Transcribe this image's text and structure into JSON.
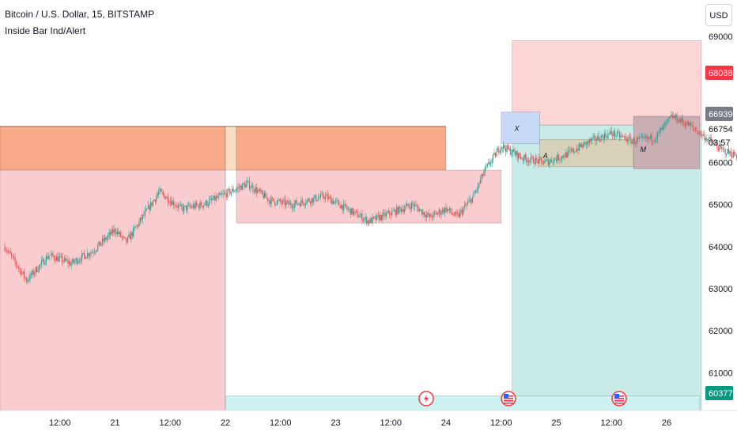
{
  "header": {
    "symbol_line": "Bitcoin / U.S. Dollar, 15, BITSTAMP",
    "indicator": "Inside Bar Ind/Alert",
    "currency": "USD"
  },
  "price_badges": {
    "target": "68088",
    "last": "66939",
    "current": "66754",
    "countdown": "03:57",
    "lower": "60377"
  },
  "pattern_labels": [
    "X",
    "A",
    "M"
  ],
  "colors": {
    "up": "#26a69a",
    "down": "#ef5350",
    "badge_red": "#f23645",
    "badge_gray": "#787b86",
    "badge_green": "#089981"
  },
  "chart_data": {
    "type": "candlestick",
    "title": "Bitcoin / U.S. Dollar, 15, BITSTAMP",
    "ylim": [
      60000,
      69500
    ],
    "yticks": [
      61000,
      62000,
      63000,
      64000,
      65000,
      66000,
      69000
    ],
    "xticks": [
      "12:00",
      "21",
      "12:00",
      "22",
      "12:00",
      "23",
      "12:00",
      "24",
      "12:00",
      "25",
      "12:00",
      "26"
    ],
    "price_path": [
      [
        0.0,
        64000
      ],
      [
        0.2,
        63200
      ],
      [
        0.4,
        63800
      ],
      [
        0.6,
        63600
      ],
      [
        0.8,
        63900
      ],
      [
        1.0,
        64400
      ],
      [
        1.1,
        64100
      ],
      [
        1.4,
        65300
      ],
      [
        1.6,
        64900
      ],
      [
        1.8,
        65000
      ],
      [
        2.2,
        65500
      ],
      [
        2.4,
        65100
      ],
      [
        2.6,
        65000
      ],
      [
        2.9,
        65200
      ],
      [
        3.1,
        64900
      ],
      [
        3.3,
        64600
      ],
      [
        3.5,
        64800
      ],
      [
        3.7,
        65000
      ],
      [
        3.85,
        64700
      ],
      [
        4.0,
        64900
      ],
      [
        4.1,
        64700
      ],
      [
        4.25,
        65200
      ],
      [
        4.35,
        65800
      ],
      [
        4.5,
        66400
      ],
      [
        4.7,
        66100
      ],
      [
        4.9,
        66000
      ],
      [
        5.1,
        66200
      ],
      [
        5.3,
        66500
      ],
      [
        5.5,
        66700
      ],
      [
        5.7,
        66500
      ],
      [
        5.9,
        66600
      ],
      [
        6.05,
        67100
      ],
      [
        6.2,
        66900
      ],
      [
        6.35,
        66600
      ],
      [
        6.5,
        66300
      ],
      [
        6.6,
        66200
      ],
      [
        6.75,
        66000
      ],
      [
        6.9,
        66100
      ],
      [
        7.1,
        66000
      ],
      [
        7.25,
        66300
      ],
      [
        7.35,
        67000
      ],
      [
        7.45,
        66900
      ],
      [
        7.55,
        66650
      ],
      [
        7.65,
        66750
      ],
      [
        7.75,
        66800
      ]
    ],
    "zones": [
      {
        "x0": -0.4,
        "x1": 2.0,
        "y0": 66860,
        "y1": 65820,
        "fill": "#f7a988"
      },
      {
        "x0": -0.4,
        "x1": 2.0,
        "y0": 65820,
        "y1": 60000,
        "fill": "#f9cdd0"
      },
      {
        "x0": 2.0,
        "x1": 2.1,
        "y0": 66860,
        "y1": 65820,
        "fill": "#fcdcc0"
      },
      {
        "x0": 2.1,
        "x1": 4.0,
        "y0": 66860,
        "y1": 65820,
        "fill": "#f7a988"
      },
      {
        "x0": 2.1,
        "x1": 4.5,
        "y0": 65820,
        "y1": 64560,
        "fill": "#f9cdd0"
      },
      {
        "x0": 4.6,
        "x1": 6.4,
        "y0": 68900,
        "y1": 66890,
        "fill": "#fcd5d5"
      },
      {
        "x0": 4.6,
        "x1": 6.4,
        "y0": 66890,
        "y1": 60000,
        "fill": "#c8ebe7"
      },
      {
        "x0": 2.0,
        "x1": 6.3,
        "y0": 60450,
        "y1": 60000,
        "fill": "#cdf1f0"
      },
      {
        "x0": 4.5,
        "x1": 4.85,
        "y0": 67200,
        "y1": 66450,
        "fill": "#c6d9f7"
      },
      {
        "x0": 4.85,
        "x1": 5.7,
        "y0": 66550,
        "y1": 65900,
        "fill": "#d6d1b8"
      },
      {
        "x0": 5.7,
        "x1": 6.3,
        "y0": 67100,
        "y1": 65850,
        "fill": "#c9aeb4"
      }
    ]
  }
}
